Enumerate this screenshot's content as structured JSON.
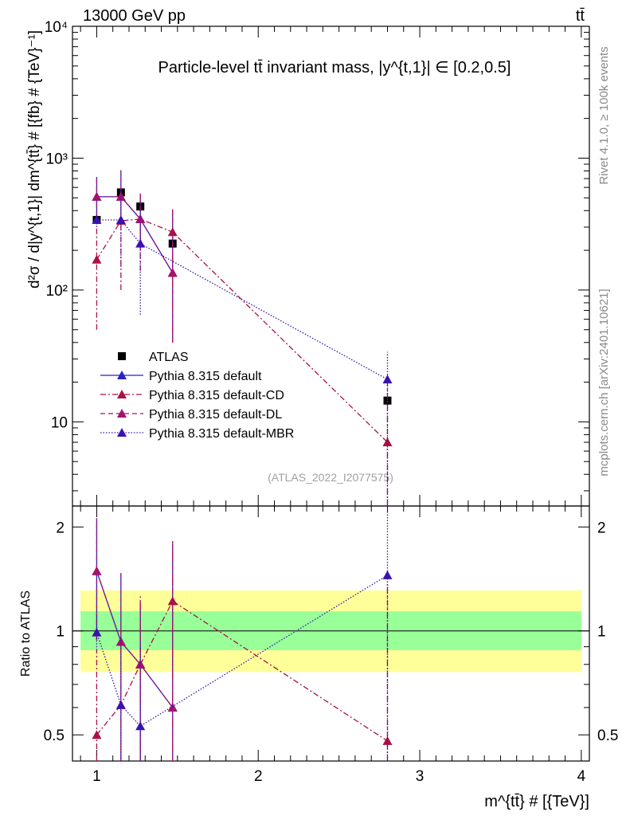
{
  "header": {
    "energy": "13000 GeV pp",
    "process": "tt̄"
  },
  "side": {
    "rivet": "Rivet 4.1.0, ≥ 100k events",
    "source": "mcplots.cern.ch [arXiv:2401.10621]"
  },
  "colors": {
    "atlas": "#000000",
    "default": "#2a22c2",
    "cd": "#aa1145",
    "dl": "#a5126c",
    "mbr": "#3a12b0",
    "band_inner": "#99ff99",
    "band_outer": "#ffff99"
  },
  "chart_data": [
    {
      "type": "line",
      "scale": "log",
      "title": "Particle-level tt̄ invariant mass, |y^{t,1}| ∈ [0.2,0.5]",
      "ylabel": "d²σ / d|y^{t,1}| dm^{tt̄} # [{fb} # {TeV}⁻¹]",
      "xlim": [
        0.85,
        4.05
      ],
      "ylim": [
        2.3,
        10000
      ],
      "ytick_labels": [
        "10",
        "10²",
        "10³",
        "10⁴"
      ],
      "ytick_values": [
        10,
        100,
        1000,
        10000
      ],
      "watermark": "(ATLAS_2022_I2077575)",
      "series": [
        {
          "name": "ATLAS",
          "key": "atlas",
          "x": [
            1.0,
            1.15,
            1.27,
            1.47,
            2.8
          ],
          "y": [
            340,
            550,
            430,
            225,
            14.5
          ],
          "err": [
            [
              340,
              340
            ],
            [
              550,
              550
            ],
            [
              430,
              430
            ],
            [
              225,
              225
            ],
            [
              14.5,
              14.5
            ]
          ],
          "marker": "square"
        },
        {
          "name": "Pythia 8.315 default",
          "key": "default",
          "x": [
            1.0,
            1.15,
            1.27,
            1.47
          ],
          "y": [
            510,
            510,
            345,
            135
          ],
          "err": [
            [
              320,
              720
            ],
            [
              330,
              810
            ],
            [
              200,
              520
            ],
            [
              40,
              400
            ]
          ],
          "marker": "triangle",
          "dash": ""
        },
        {
          "name": "Pythia 8.315 default-CD",
          "key": "cd",
          "x": [
            1.0,
            1.15,
            1.27,
            1.47,
            2.8
          ],
          "y": [
            170,
            335,
            345,
            275,
            7
          ],
          "err": [
            [
              50,
              300
            ],
            [
              100,
              560
            ],
            [
              140,
              540
            ],
            [
              40,
              410
            ],
            [
              1,
              20
            ]
          ],
          "marker": "triangle",
          "dash": "7,3,2,3"
        },
        {
          "name": "Pythia 8.315 default-DL",
          "key": "dl",
          "x": [
            1.0,
            1.15,
            1.27,
            1.47
          ],
          "y": [
            510,
            510,
            345,
            135
          ],
          "err": [
            [
              320,
              720
            ],
            [
              330,
              810
            ],
            [
              200,
              520
            ],
            [
              40,
              400
            ]
          ],
          "marker": "triangle",
          "dash": "6,4"
        },
        {
          "name": "Pythia 8.315 default-MBR",
          "key": "mbr",
          "x": [
            1.0,
            1.15,
            1.27,
            2.8
          ],
          "y": [
            340,
            340,
            225,
            21
          ],
          "err": [
            [
              300,
              380
            ],
            [
              150,
              530
            ],
            [
              65,
              400
            ],
            [
              1,
              34
            ]
          ],
          "marker": "triangle",
          "dash": "1.5,2"
        }
      ]
    },
    {
      "type": "line",
      "scale": "log",
      "ylabel": "Ratio to ATLAS",
      "xlabel": "m^{tt̄} # [{TeV}]",
      "xlim": [
        0.85,
        4.05
      ],
      "ylim": [
        0.42,
        2.3
      ],
      "xtick_labels": [
        "1",
        "2",
        "3",
        "4"
      ],
      "xtick_values": [
        1,
        2,
        3,
        4
      ],
      "ytick_labels": [
        "0.5",
        "1",
        "2"
      ],
      "ytick_values": [
        0.5,
        1,
        2
      ],
      "band_inner": [
        0.88,
        1.14
      ],
      "band_outer": [
        0.76,
        1.31
      ],
      "series": [
        {
          "name": "Pythia 8.315 default",
          "key": "default",
          "x": [
            1.0,
            1.15,
            1.27,
            1.47
          ],
          "y": [
            1.49,
            0.93,
            0.8,
            0.6
          ],
          "err": [
            [
              0.94,
              2.12
            ],
            [
              0.3,
              1.47
            ],
            [
              0.42,
              1.2
            ],
            [
              0.18,
              1.78
            ]
          ],
          "marker": "triangle",
          "dash": ""
        },
        {
          "name": "Pythia 8.315 default-CD",
          "key": "cd",
          "x": [
            1.0,
            1.15,
            1.27,
            1.47,
            2.8
          ],
          "y": [
            0.5,
            0.61,
            0.8,
            1.22,
            0.48
          ],
          "err": [
            [
              0.15,
              0.88
            ],
            [
              0.18,
              1.02
            ],
            [
              0.33,
              1.26
            ],
            [
              0.18,
              1.82
            ],
            [
              0.07,
              1.38
            ]
          ],
          "marker": "triangle",
          "dash": "7,3,2,3"
        },
        {
          "name": "Pythia 8.315 default-DL",
          "key": "dl",
          "x": [
            1.0,
            1.15,
            1.27,
            1.47
          ],
          "y": [
            1.49,
            0.93,
            0.8,
            0.6
          ],
          "err": [
            [
              0.94,
              2.12
            ],
            [
              0.3,
              1.47
            ],
            [
              0.42,
              1.2
            ],
            [
              0.18,
              1.78
            ]
          ],
          "marker": "triangle",
          "dash": "6,4"
        },
        {
          "name": "Pythia 8.315 default-MBR",
          "key": "mbr",
          "x": [
            1.0,
            1.15,
            1.27,
            2.8
          ],
          "y": [
            0.99,
            0.61,
            0.53,
            1.45
          ],
          "err": [
            [
              0.88,
              1.11
            ],
            [
              0.27,
              0.96
            ],
            [
              0.15,
              0.92
            ],
            [
              0.07,
              2.35
            ]
          ],
          "marker": "triangle",
          "dash": "1.5,2"
        }
      ]
    }
  ]
}
